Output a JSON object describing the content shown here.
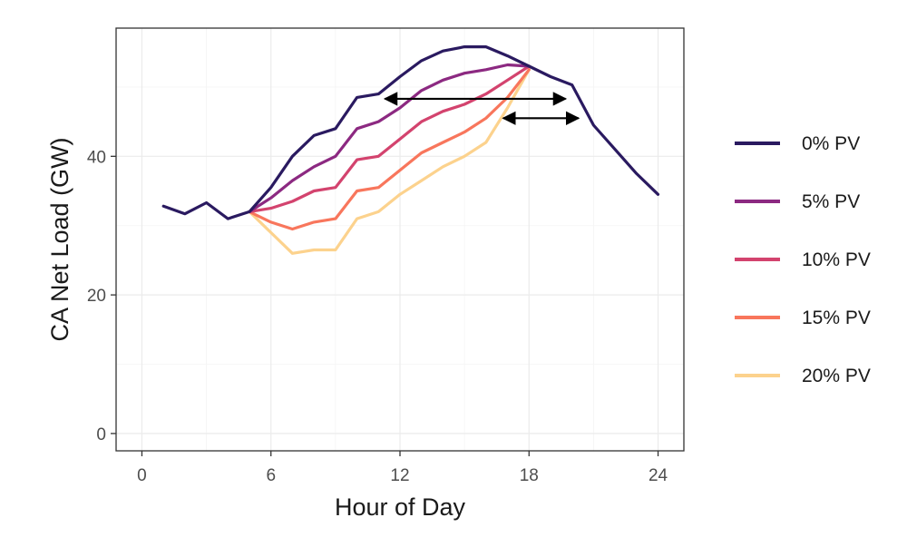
{
  "chart_data": {
    "type": "line",
    "title": "",
    "xlabel": "Hour of Day",
    "ylabel": "CA Net Load (GW)",
    "xlim": [
      -1.2,
      25.2
    ],
    "ylim": [
      -2.5,
      58.5
    ],
    "xticks": [
      0,
      6,
      12,
      18,
      24
    ],
    "yticks": [
      0,
      20,
      40
    ],
    "grid": true,
    "legend_position": "right",
    "series": [
      {
        "name": "0% PV",
        "color": "#2a1a60",
        "x": [
          1,
          2,
          3,
          4,
          5,
          6,
          7,
          8,
          9,
          10,
          11,
          12,
          13,
          14,
          15,
          16,
          17,
          18,
          19,
          20,
          21,
          22,
          23,
          24
        ],
        "y": [
          32.8,
          31.7,
          33.3,
          31.0,
          32.0,
          35.5,
          40.0,
          43.0,
          44.0,
          48.5,
          49.0,
          51.5,
          53.8,
          55.2,
          55.8,
          55.8,
          54.5,
          53.0,
          51.5,
          50.3,
          44.5,
          41.0,
          37.5,
          34.5
        ]
      },
      {
        "name": "5% PV",
        "color": "#8c2981",
        "x": [
          5,
          6,
          7,
          8,
          9,
          10,
          11,
          12,
          13,
          14,
          15,
          16,
          17,
          18
        ],
        "y": [
          32.0,
          34.0,
          36.5,
          38.5,
          40.0,
          44.0,
          45.0,
          47.0,
          49.5,
          51.0,
          52.0,
          52.5,
          53.2,
          53.0
        ]
      },
      {
        "name": "10% PV",
        "color": "#d3436e",
        "x": [
          5,
          6,
          7,
          8,
          9,
          10,
          11,
          12,
          13,
          14,
          15,
          16,
          17,
          18
        ],
        "y": [
          32.0,
          32.5,
          33.5,
          35.0,
          35.5,
          39.5,
          40.0,
          42.5,
          45.0,
          46.5,
          47.5,
          49.0,
          51.0,
          53.0
        ]
      },
      {
        "name": "15% PV",
        "color": "#f8765c",
        "x": [
          5,
          6,
          7,
          8,
          9,
          10,
          11,
          12,
          13,
          14,
          15,
          16,
          17,
          18
        ],
        "y": [
          32.0,
          30.5,
          29.5,
          30.5,
          31.0,
          35.0,
          35.5,
          38.0,
          40.5,
          42.0,
          43.5,
          45.5,
          48.5,
          52.5
        ]
      },
      {
        "name": "20% PV",
        "color": "#fcd28d",
        "x": [
          5,
          6,
          7,
          8,
          9,
          10,
          11,
          12,
          13,
          14,
          15,
          16,
          17,
          18
        ],
        "y": [
          32.0,
          29.0,
          26.0,
          26.5,
          26.5,
          31.0,
          32.0,
          34.5,
          36.5,
          38.5,
          40.0,
          42.0,
          47.0,
          52.5
        ]
      }
    ],
    "annotations": [
      {
        "type": "double-arrow",
        "from": [
          11.3,
          48.3
        ],
        "to": [
          19.7,
          48.3
        ],
        "color": "#000000"
      },
      {
        "type": "double-arrow",
        "from": [
          16.8,
          45.5
        ],
        "to": [
          20.3,
          45.5
        ],
        "color": "#000000"
      }
    ]
  }
}
